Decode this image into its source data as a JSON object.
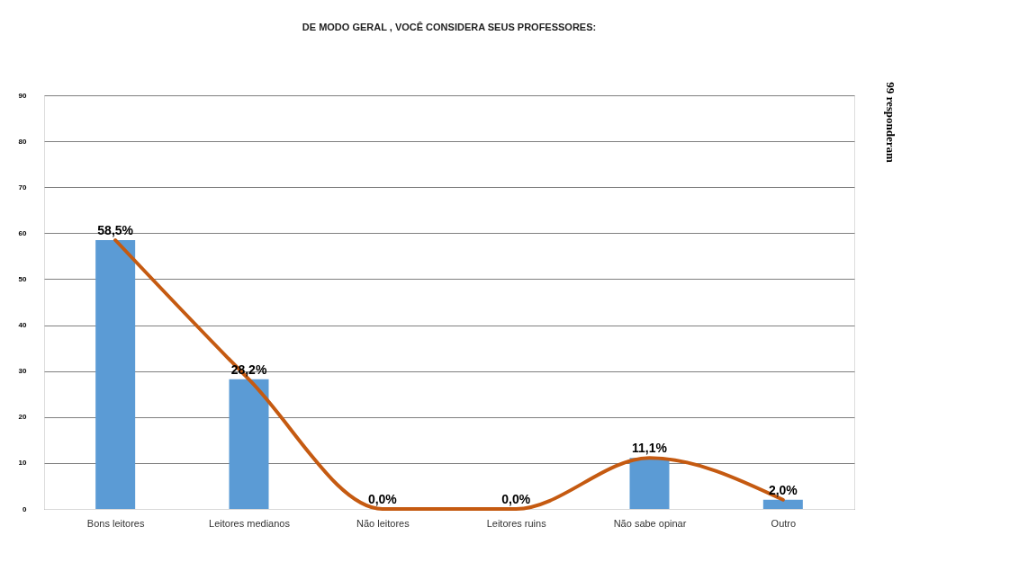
{
  "chart_data": {
    "type": "bar",
    "title": "DE MODO GERAL , VOCÊ CONSIDERA SEUS PROFESSORES:",
    "categories": [
      "Bons leitores",
      "Leitores medianos",
      "Não leitores",
      "Leitores ruins",
      "Não sabe opinar",
      "Outro"
    ],
    "series": [
      {
        "color": "#5b9bd5",
        "values": [
          58.5,
          28.2,
          0.0,
          0.0,
          11.1,
          2.0
        ],
        "value_labels": [
          "58,5%",
          "28,2%",
          "0,0%",
          "0,0%",
          "11,1%",
          "2,0%"
        ]
      },
      {
        "type": "line",
        "color": "#c55a11",
        "values": [
          58.5,
          28.2,
          0.0,
          0.0,
          11.1,
          2.0
        ]
      }
    ],
    "ylim": [
      0,
      90
    ],
    "yticks": [
      0,
      10,
      20,
      30,
      40,
      50,
      60,
      70,
      80,
      90
    ],
    "grid": "y",
    "annotations": [
      "99 responderam"
    ]
  }
}
